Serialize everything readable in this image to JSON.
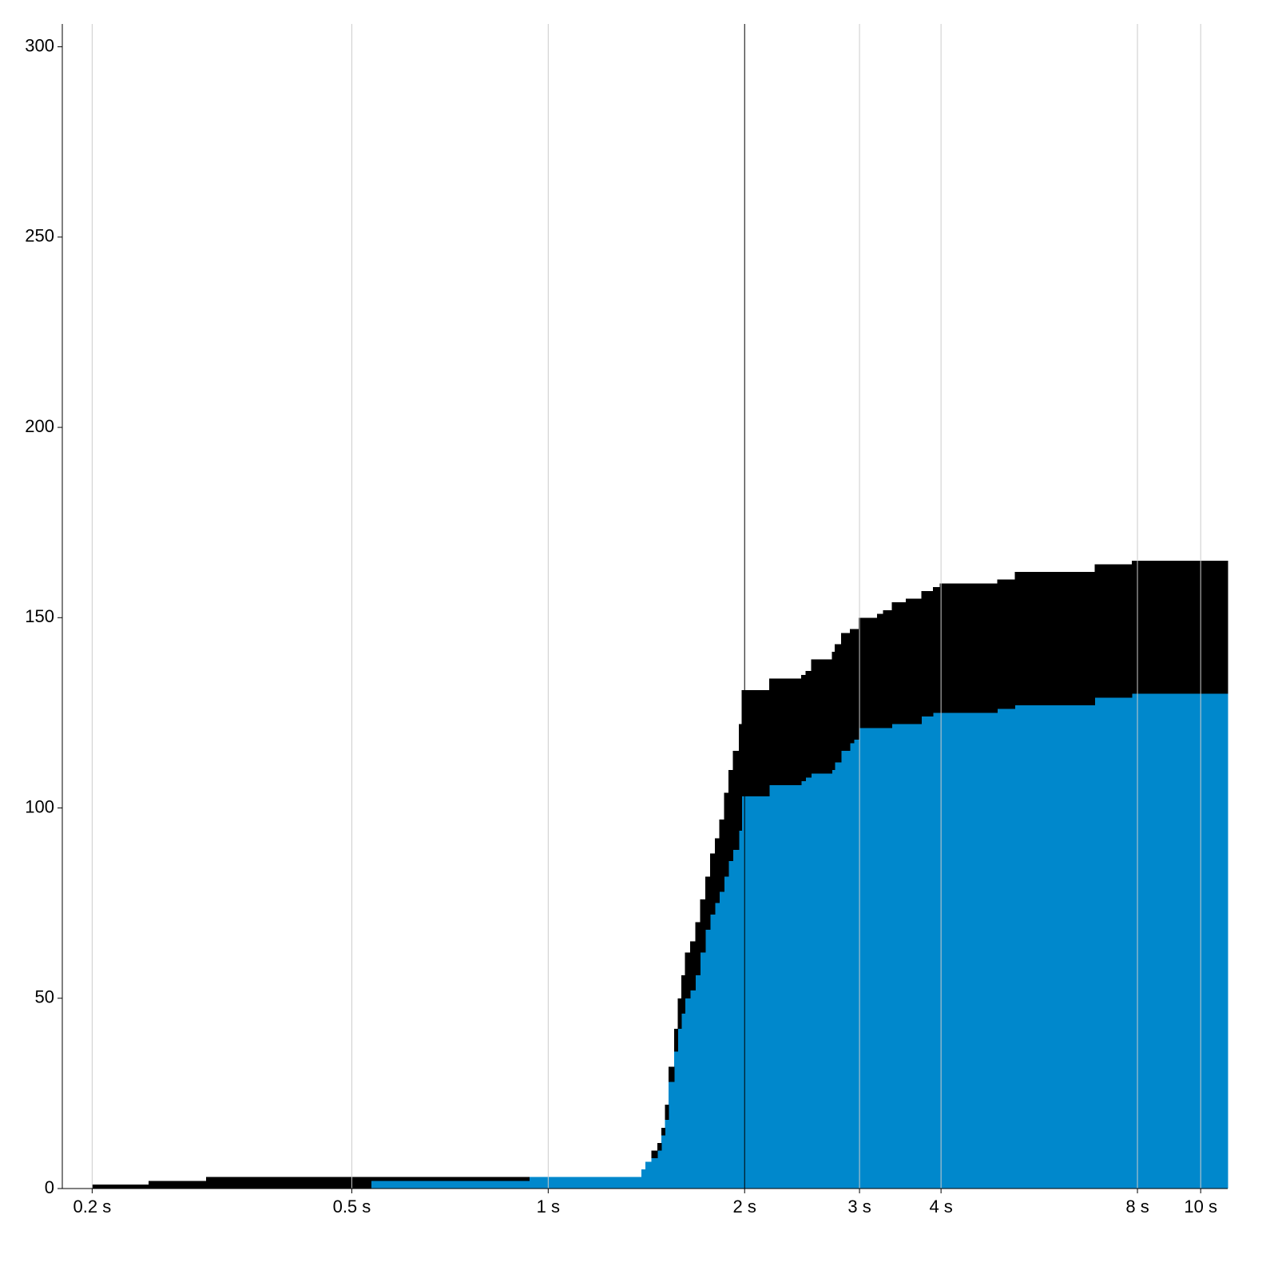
{
  "chart_data": {
    "type": "step-area",
    "x": [
      0.2,
      0.244,
      0.299,
      0.535,
      0.935,
      1.39,
      1.41,
      1.44,
      1.47,
      1.49,
      1.51,
      1.53,
      1.56,
      1.58,
      1.6,
      1.62,
      1.65,
      1.68,
      1.71,
      1.74,
      1.77,
      1.8,
      1.83,
      1.86,
      1.89,
      1.92,
      1.96,
      1.98,
      2.18,
      2.44,
      2.48,
      2.53,
      2.72,
      2.75,
      2.81,
      2.9,
      2.94,
      2.99,
      3.19,
      3.26,
      3.36,
      3.53,
      3.73,
      3.89,
      3.98,
      4.88,
      5.19,
      6.88,
      7.84
    ],
    "series": [
      {
        "color": "#0088cc",
        "values": [
          0,
          0,
          0,
          2,
          3,
          5,
          7,
          8,
          10,
          14,
          18,
          28,
          36,
          42,
          46,
          50,
          52,
          56,
          62,
          68,
          72,
          75,
          78,
          82,
          86,
          89,
          94,
          103,
          106,
          107,
          108,
          109,
          110,
          112,
          115,
          117,
          118,
          121,
          121,
          121,
          122,
          122,
          124,
          125,
          125,
          126,
          127,
          129,
          130
        ]
      },
      {
        "color": "#000000",
        "values": [
          1,
          2,
          3,
          1,
          0,
          0,
          0,
          2,
          2,
          2,
          4,
          4,
          6,
          8,
          10,
          12,
          13,
          14,
          14,
          14,
          16,
          17,
          19,
          22,
          24,
          26,
          28,
          28,
          28,
          28,
          28,
          30,
          31,
          31,
          31,
          30,
          29,
          29,
          30,
          31,
          32,
          33,
          33,
          33,
          34,
          34,
          35,
          35,
          35
        ]
      }
    ],
    "stacked": true,
    "xscale": "log",
    "xlim": [
      0.18,
      11
    ],
    "xticks": [
      {
        "value": 0.2,
        "label": "0.2 s"
      },
      {
        "value": 0.5,
        "label": "0.5 s"
      },
      {
        "value": 1,
        "label": "1 s"
      },
      {
        "value": 2,
        "label": "2 s"
      },
      {
        "value": 3,
        "label": "3 s"
      },
      {
        "value": 4,
        "label": "4 s"
      },
      {
        "value": 8,
        "label": "8 s"
      },
      {
        "value": 10,
        "label": "10 s"
      }
    ],
    "ylim": [
      0,
      306
    ],
    "yticks": [
      0,
      50,
      100,
      150,
      200,
      250,
      300
    ],
    "grid": true,
    "grid_color": "#cccccc",
    "vline": {
      "x": 2,
      "color": "#000000"
    }
  }
}
